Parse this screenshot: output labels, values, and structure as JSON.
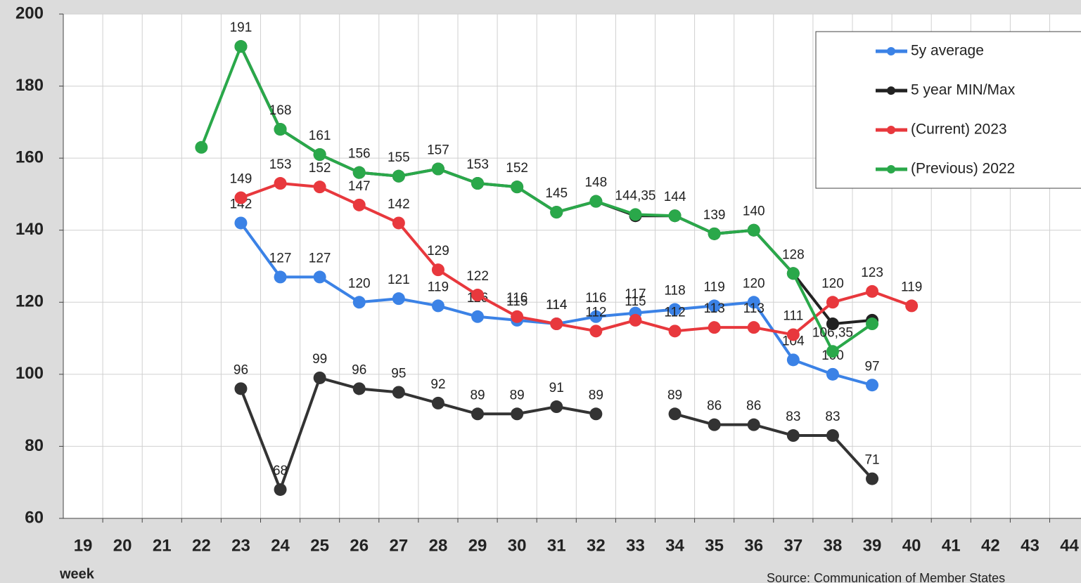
{
  "chart_data": {
    "type": "line",
    "categories": [
      "19",
      "20",
      "21",
      "22",
      "23",
      "24",
      "25",
      "26",
      "27",
      "28",
      "29",
      "30",
      "31",
      "32",
      "33",
      "34",
      "35",
      "36",
      "37",
      "38",
      "39",
      "40",
      "41",
      "42",
      "43",
      "44"
    ],
    "x_label": "week",
    "source": "Source: Communication of Member States",
    "ylim": [
      60,
      200
    ],
    "yticks": [
      60,
      80,
      100,
      120,
      140,
      160,
      180,
      200
    ],
    "grid": true,
    "legend": "upper right",
    "series": [
      {
        "name": "5y average",
        "color": "#3b82e6",
        "values": [
          null,
          null,
          null,
          null,
          142,
          127,
          127,
          120,
          121,
          119,
          116,
          115,
          114,
          116,
          117,
          118,
          119,
          120,
          104,
          100,
          97,
          null,
          null,
          null,
          null,
          null
        ]
      },
      {
        "name": "5 year MIN/Max",
        "color": "#222222",
        "values": [
          null,
          null,
          null,
          null,
          191,
          168,
          161,
          156,
          155,
          157,
          153,
          152,
          145,
          148,
          144,
          144,
          139,
          140,
          128,
          114,
          115,
          null,
          null,
          null,
          null,
          null
        ]
      },
      {
        "name": " (Current) 2023",
        "color": "#e8383d",
        "values": [
          null,
          null,
          null,
          null,
          149,
          153,
          152,
          147,
          142,
          129,
          122,
          116,
          114,
          112,
          115,
          112,
          113,
          113,
          111,
          120,
          123,
          119,
          null,
          null,
          null,
          null
        ]
      },
      {
        "name": "(Previous) 2022",
        "color": "#2aa84a",
        "values": [
          null,
          null,
          null,
          163,
          191,
          168,
          161,
          156,
          155,
          157,
          153,
          152,
          145,
          148,
          144.35,
          144,
          139,
          140,
          128,
          106.35,
          114,
          null,
          null,
          null,
          null,
          null
        ],
        "value_labels": [
          null,
          null,
          null,
          null,
          "191",
          "168",
          "161",
          "156",
          "155",
          "157",
          "153",
          "152",
          "145",
          "148",
          "144,35",
          "144",
          "139",
          "140",
          "128",
          "106,35",
          null,
          null,
          null,
          null,
          null,
          null
        ]
      },
      {
        "color": "#333333",
        "values": [
          null,
          null,
          null,
          null,
          96,
          68,
          99,
          96,
          95,
          92,
          89,
          89,
          91,
          89,
          null,
          89,
          86,
          86,
          83,
          83,
          71,
          null,
          null,
          null,
          null,
          null
        ]
      }
    ]
  }
}
